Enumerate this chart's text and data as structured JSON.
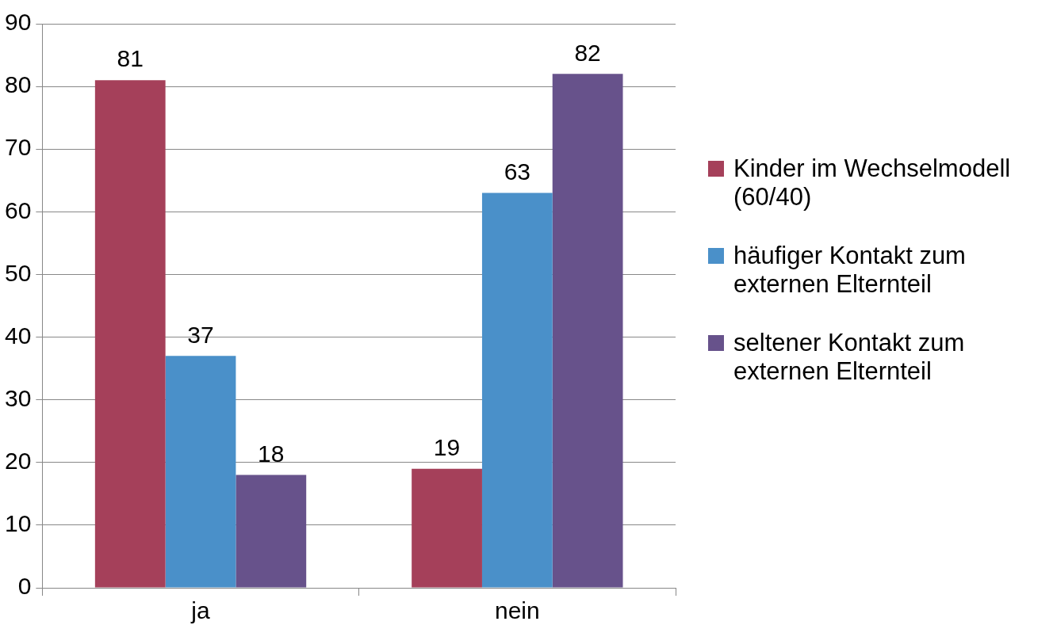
{
  "chart_data": {
    "type": "bar",
    "categories": [
      "ja",
      "nein"
    ],
    "series": [
      {
        "name": "Kinder im Wechselmodell (60/40)",
        "color": "#a5405a",
        "values": [
          81,
          19
        ]
      },
      {
        "name": "häufiger Kontakt zum externen Elternteil",
        "color": "#4a90c9",
        "values": [
          37,
          63
        ]
      },
      {
        "name": "seltener Kontakt zum externen Elternteil",
        "color": "#67528b",
        "values": [
          18,
          82
        ]
      }
    ],
    "ylim": [
      0,
      90
    ],
    "yticks": [
      0,
      10,
      20,
      30,
      40,
      50,
      60,
      70,
      80,
      90
    ],
    "grid": "y",
    "legend": "right",
    "data_labels": true
  }
}
